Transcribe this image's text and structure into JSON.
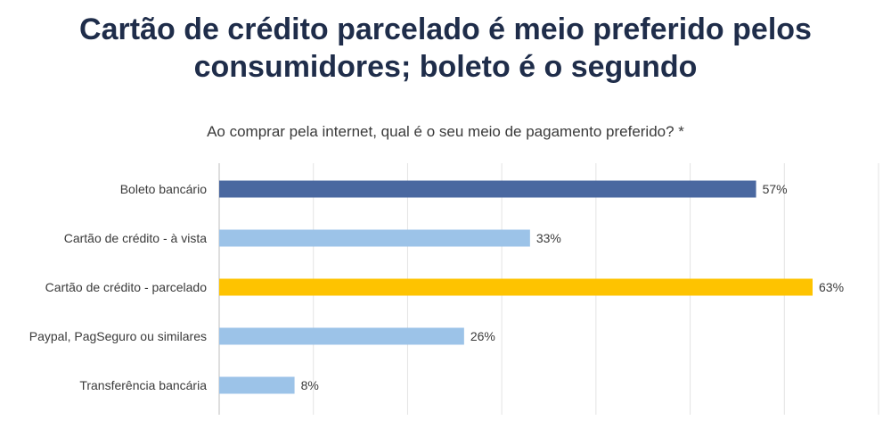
{
  "title": "Cartão de crédito parcelado é meio preferido pelos consumidores; boleto é o segundo",
  "chart_data": {
    "type": "bar",
    "orientation": "horizontal",
    "title": "Ao comprar pela internet, qual é o seu meio de pagamento preferido? *",
    "categories": [
      "Boleto bancário",
      "Cartão de crédito - à vista",
      "Cartão de crédito - parcelado",
      "Paypal, PagSeguro ou similares",
      "Transferência bancária"
    ],
    "values": [
      57,
      33,
      63,
      26,
      8
    ],
    "value_labels": [
      "57%",
      "33%",
      "63%",
      "26%",
      "8%"
    ],
    "colors": [
      "#4a68a0",
      "#9cc3e8",
      "#fec300",
      "#9cc3e8",
      "#9cc3e8"
    ],
    "xlim": [
      0,
      70
    ],
    "grid": true,
    "xlabel": "",
    "ylabel": ""
  }
}
